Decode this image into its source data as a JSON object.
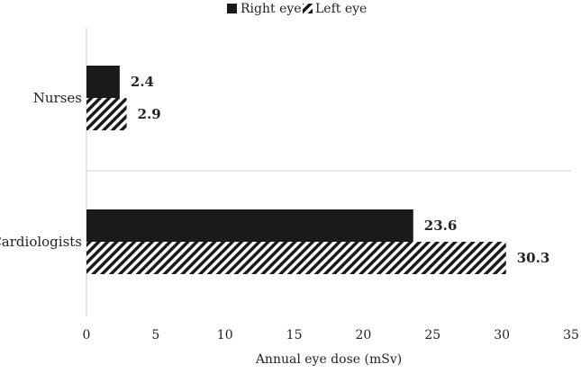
{
  "chart_data": {
    "type": "bar",
    "orientation": "horizontal",
    "categories": [
      "Nurses",
      "Cardiologists"
    ],
    "series": [
      {
        "name": "Right eye",
        "values": [
          2.4,
          23.6
        ],
        "pattern": "solid",
        "color": "#1a1a1a"
      },
      {
        "name": "Left eye",
        "values": [
          2.9,
          30.3
        ],
        "pattern": "diagonal-hatch",
        "color": "#1a1a1a"
      }
    ],
    "data_labels": [
      [
        "2.4",
        "23.6"
      ],
      [
        "2.9",
        "30.3"
      ]
    ],
    "xlabel": "Annual eye dose (mSv)",
    "ylabel": "",
    "xlim": [
      0,
      35
    ],
    "xticks": [
      "0",
      "5",
      "10",
      "15",
      "20",
      "25",
      "30",
      "35"
    ],
    "legend_position": "top",
    "grid": false
  }
}
